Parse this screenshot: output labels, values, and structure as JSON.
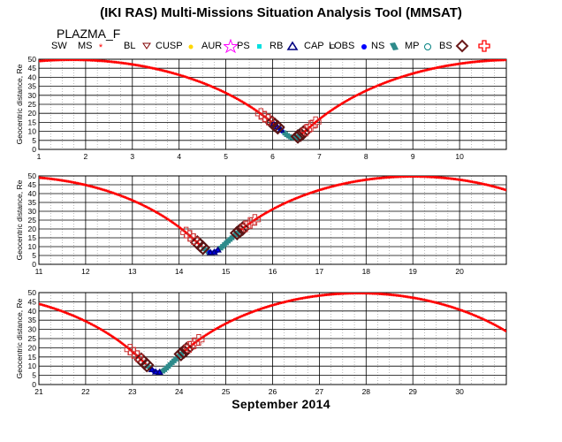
{
  "title": "(IKI RAS) Multi-Missions Situation Analysis Tool (MMSAT)",
  "mission": "PLAZMA_F",
  "legend": [
    {
      "label": "SW",
      "icon": "none-icon",
      "color": "#000000"
    },
    {
      "label": "MS",
      "icon": "red-star-icon",
      "color": "#ff0000"
    },
    {
      "label": "BL",
      "icon": "triangle-down-icon",
      "color": "#800000"
    },
    {
      "label": "CUSP",
      "icon": "yellow-dot-icon",
      "color": "#ffd700"
    },
    {
      "label": "AUR",
      "icon": "magenta-star-icon",
      "color": "#ff00ff"
    },
    {
      "label": "PS",
      "icon": "cyan-square-icon",
      "color": "#00e0e0"
    },
    {
      "label": "RB",
      "icon": "triangle-up-icon",
      "color": "#000080"
    },
    {
      "label": "CAP",
      "icon": "small-square-icon",
      "color": "#808080"
    },
    {
      "label": "LOBS",
      "icon": "blue-dot-icon",
      "color": "#0000ff"
    },
    {
      "label": "NS",
      "icon": "teal-marker-icon",
      "color": "#2e8b8b"
    },
    {
      "label": "MP",
      "icon": "circle-icon",
      "color": "#008080"
    },
    {
      "label": "BS",
      "icon": "diamond-icon",
      "color": "#6b1a1a"
    },
    {
      "label": "",
      "icon": "cross-icon",
      "color": "#ff0000"
    }
  ],
  "xlabel": "September 2014",
  "ylabel": "Geocentric distance, Re",
  "chart_data": [
    {
      "type": "scatter",
      "xlim": [
        1,
        11
      ],
      "ylim": [
        0,
        50
      ],
      "xticks": [
        "1",
        "2",
        "3",
        "4",
        "5",
        "6",
        "7",
        "8",
        "9",
        "10"
      ],
      "yticks": [
        "0",
        "5",
        "10",
        "15",
        "20",
        "25",
        "30",
        "35",
        "40",
        "45",
        "50"
      ],
      "apogee_day": 1.7,
      "perigee_day": 6.1,
      "period_days": 9.5,
      "crossings": [
        {
          "region": "BS",
          "inbound_day": 6.05,
          "outbound_day": 6.6
        }
      ]
    },
    {
      "type": "scatter",
      "xlim": [
        11,
        21
      ],
      "ylim": [
        0,
        50
      ],
      "xticks": [
        "11",
        "12",
        "13",
        "14",
        "15",
        "16",
        "17",
        "18",
        "19",
        "20"
      ],
      "yticks": [
        "0",
        "5",
        "10",
        "15",
        "20",
        "25",
        "30",
        "35",
        "40",
        "45",
        "50"
      ],
      "apogee_day": 19.0,
      "perigee_day": 14.75,
      "period_days": 8.6,
      "crossings": [
        {
          "region": "BS",
          "inbound_day": 14.45,
          "outbound_day": 15.3
        }
      ]
    },
    {
      "type": "scatter",
      "xlim": [
        21,
        31
      ],
      "ylim": [
        0,
        50
      ],
      "xticks": [
        "21",
        "22",
        "23",
        "24",
        "25",
        "26",
        "27",
        "28",
        "29",
        "30"
      ],
      "yticks": [
        "0",
        "5",
        "10",
        "15",
        "20",
        "25",
        "30",
        "35",
        "40",
        "45",
        "50"
      ],
      "apogee_day": 27.85,
      "perigee_day": 23.5,
      "period_days": 8.6,
      "crossings": [
        {
          "region": "BS",
          "inbound_day": 23.25,
          "outbound_day": 24.1
        }
      ]
    }
  ]
}
